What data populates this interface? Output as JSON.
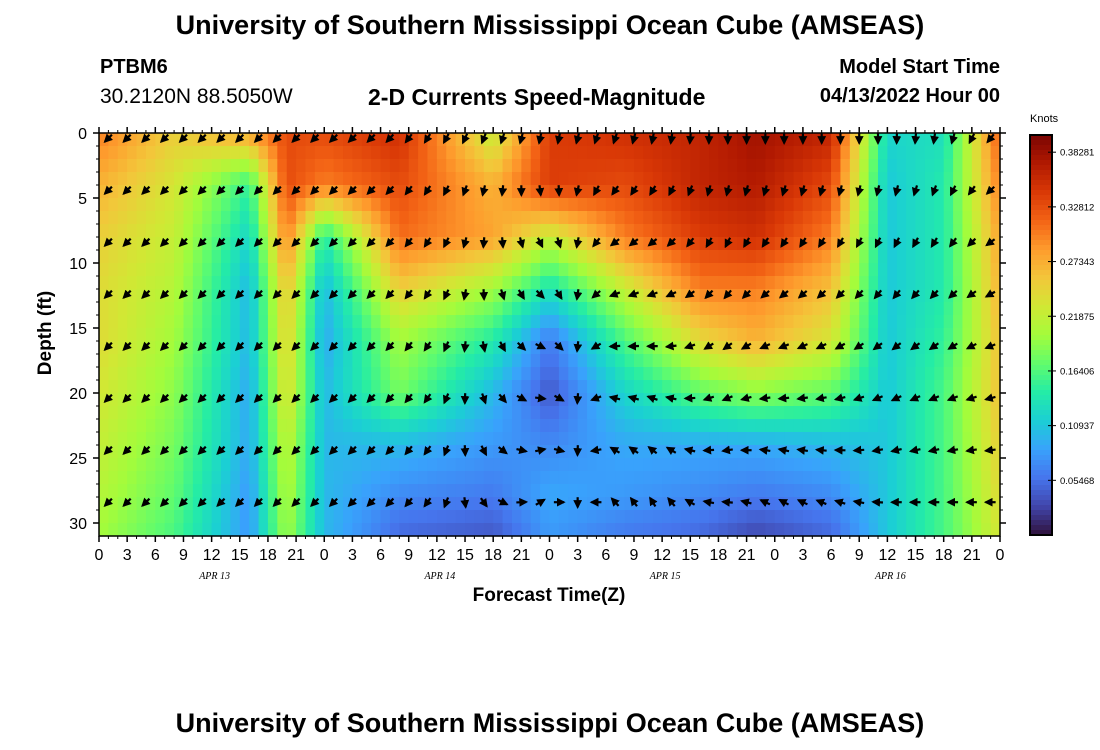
{
  "header": {
    "title": "University of Southern Mississippi Ocean Cube (AMSEAS)",
    "station": "PTBM6",
    "coordinates": "30.2120N  88.5050W",
    "subtitle": "2-D Currents Speed-Magnitude",
    "model_start_label": "Model Start Time",
    "model_start_value": "04/13/2022 Hour 00"
  },
  "footer": {
    "title": "University of Southern Mississippi Ocean Cube (AMSEAS)"
  },
  "chart_data": {
    "type": "heatmap",
    "title": "2-D Currents Speed-Magnitude",
    "xlabel": "Forecast Time(Z)",
    "ylabel": "Depth (ft)",
    "x_tick_labels": [
      "0",
      "3",
      "6",
      "9",
      "12",
      "15",
      "18",
      "21",
      "0",
      "3",
      "6",
      "9",
      "12",
      "15",
      "18",
      "21",
      "0",
      "3",
      "6",
      "9",
      "12",
      "15",
      "18",
      "21",
      "0",
      "3",
      "6",
      "9",
      "12",
      "15",
      "18",
      "21",
      "0"
    ],
    "date_labels": [
      {
        "label": "APR 13",
        "hour": 12
      },
      {
        "label": "APR 14",
        "hour": 36
      },
      {
        "label": "APR 15",
        "hour": 60
      },
      {
        "label": "APR 16",
        "hour": 84
      }
    ],
    "x_range_hours": [
      0,
      96
    ],
    "y_ticks": [
      0,
      5,
      10,
      15,
      20,
      25,
      30
    ],
    "y_range_ft": [
      0,
      31
    ],
    "colorbar": {
      "units": "Knots",
      "tick_labels": [
        "0.05468",
        "0.10937",
        "0.16406",
        "0.21875",
        "0.27343",
        "0.32812",
        "0.38281"
      ],
      "range": [
        0,
        0.4
      ],
      "colors": [
        "#30123b",
        "#4145ab",
        "#4675ed",
        "#39a2fc",
        "#1bcfd4",
        "#24eca6",
        "#61fc6c",
        "#a4fc3b",
        "#d1e834",
        "#f3c63a",
        "#fe9b2d",
        "#f36315",
        "#d93806",
        "#b11901",
        "#7a0403"
      ]
    },
    "x_hours": [
      0,
      8,
      16,
      20,
      24,
      32,
      42,
      48,
      56,
      64,
      70,
      78,
      84,
      90,
      96
    ],
    "depth_ft": [
      0,
      4,
      8,
      12,
      16,
      20,
      24,
      28,
      31
    ],
    "speed_knots": [
      [
        0.3,
        0.25,
        0.28,
        0.33,
        0.33,
        0.35,
        0.22,
        0.34,
        0.35,
        0.36,
        0.38,
        0.36,
        0.12,
        0.13,
        0.32
      ],
      [
        0.27,
        0.23,
        0.15,
        0.33,
        0.3,
        0.33,
        0.27,
        0.34,
        0.33,
        0.36,
        0.37,
        0.33,
        0.11,
        0.14,
        0.3
      ],
      [
        0.25,
        0.22,
        0.12,
        0.3,
        0.14,
        0.31,
        0.28,
        0.22,
        0.3,
        0.34,
        0.35,
        0.3,
        0.11,
        0.14,
        0.28
      ],
      [
        0.24,
        0.21,
        0.1,
        0.26,
        0.1,
        0.25,
        0.2,
        0.13,
        0.22,
        0.3,
        0.3,
        0.26,
        0.11,
        0.14,
        0.27
      ],
      [
        0.24,
        0.2,
        0.1,
        0.25,
        0.09,
        0.2,
        0.14,
        0.06,
        0.16,
        0.24,
        0.27,
        0.23,
        0.11,
        0.15,
        0.26
      ],
      [
        0.23,
        0.19,
        0.09,
        0.24,
        0.1,
        0.18,
        0.1,
        0.04,
        0.12,
        0.17,
        0.19,
        0.17,
        0.11,
        0.16,
        0.26
      ],
      [
        0.22,
        0.18,
        0.09,
        0.22,
        0.1,
        0.1,
        0.08,
        0.07,
        0.09,
        0.09,
        0.09,
        0.1,
        0.11,
        0.16,
        0.25
      ],
      [
        0.21,
        0.17,
        0.08,
        0.21,
        0.1,
        0.07,
        0.06,
        0.09,
        0.08,
        0.07,
        0.06,
        0.07,
        0.11,
        0.16,
        0.24
      ],
      [
        0.2,
        0.16,
        0.08,
        0.2,
        0.1,
        0.05,
        0.04,
        0.08,
        0.06,
        0.05,
        0.03,
        0.05,
        0.11,
        0.16,
        0.23
      ]
    ],
    "vector_depths_ft": [
      0,
      4,
      8,
      12,
      16,
      20,
      24,
      28
    ],
    "vector_direction_keys": {
      "hours": [
        0,
        24,
        30,
        36,
        48,
        54,
        60,
        66,
        72,
        78,
        84,
        90,
        96
      ],
      "shallow_deg": [
        225,
        225,
        225,
        210,
        190,
        200,
        190,
        180,
        180,
        180,
        180,
        190,
        225
      ],
      "deep_deg": [
        225,
        225,
        225,
        215,
        45,
        315,
        330,
        270,
        300,
        290,
        270,
        270,
        270
      ]
    }
  }
}
